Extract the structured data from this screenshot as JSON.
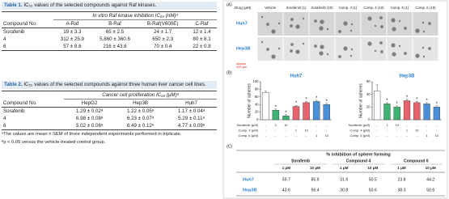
{
  "table1": {
    "label": "Table 1.",
    "caption": "IC₅₀ values of the selected compounds against Raf kinases.",
    "group_header": "In vitro Raf kinase inhibition IC₅₀ (nM)ᵃ",
    "columns": [
      "Compound No.",
      "A-Raf",
      "B-Raf",
      "B-Raf(V600E)",
      "C-Raf"
    ],
    "rows": [
      [
        "Sorafenib",
        "19 ± 3.3",
        "65 ± 2.5",
        "24 ± 1.7",
        "12 ± 1.4"
      ],
      [
        "4",
        "312 ± 25.9",
        "5,860 ± 360.6",
        "650 ± 2.3",
        "80 ± 8.1"
      ],
      [
        "6",
        "57 ± 8.6",
        "216 ± 43.6",
        "70 ± 0.4",
        "22 ± 0.8"
      ]
    ]
  },
  "table2": {
    "label": "Table 2.",
    "caption": "IC₅₀ values of the selected compounds against three human liver cancer cell lines.",
    "group_header": "Cancer cell proliferation IC₅₀ (μM)ᵃ",
    "columns": [
      "Compound No.",
      "HepG2",
      "Hep3B",
      "Huh7"
    ],
    "rows": [
      [
        "Sorafenib",
        "1.29 ± 0.02ᵃ",
        "1.22 ± 0.05ᵃ",
        "1.17 ± 0.04ᵃ"
      ],
      [
        "4",
        "6.98 ± 0.08ᵃ",
        "6.23 ± 0.07ᵃ",
        "5.29 ± 0.11ᵃ"
      ],
      [
        "6",
        "5.02 ± 0.06ᵃ",
        "6.49 ± 0.12ᵃ",
        "4.77 ± 0.09ᵃ"
      ]
    ],
    "footnotes": [
      "ᵃThe values are mean ± SEM of three independent experiments performed in triplicate.",
      "ᵇp < 0.05 versus the vehicle-treated control group."
    ]
  },
  "figure": {
    "panel_a": {
      "letter": "(A)",
      "header": "Drug (μM)",
      "conditions": [
        "Vehicle",
        "Sorafenib (1)",
        "Sorafenib (10)",
        "Comp. 4 (1)",
        "Comp. 4 (10)",
        "Comp. 6 (1)",
        "Comp. 6 (10)"
      ],
      "cell_lines": [
        "Huh7",
        "Hep3B"
      ],
      "scale_bar": "200 μm"
    },
    "panel_b": {
      "letter": "(B)"
    },
    "panel_c": {
      "letter": "(C)",
      "title": "% inhibition of sphere forming",
      "groups": [
        "Sorafenib",
        "Compound 4",
        "Compound 6"
      ],
      "doses": [
        "1 μM",
        "10 μM",
        "1 μM",
        "10 μM",
        "1 μM",
        "10 μM"
      ],
      "rows": [
        {
          "label": "Huh7",
          "values": [
            59.7,
            85.9,
            31.6,
            50.5,
            23.8,
            44.2
          ]
        },
        {
          "label": "Hep3B",
          "values": [
            43.6,
            56.4,
            30.8,
            50.6,
            38.3,
            50.6
          ]
        }
      ]
    }
  },
  "chart_data": [
    {
      "type": "bar",
      "title": "Huh7",
      "y_label": "Number of spheres",
      "values": [
        72,
        25,
        10,
        35,
        45,
        48,
        40
      ],
      "errors": [
        3,
        3,
        3,
        3,
        3,
        3,
        3
      ],
      "markers": [
        null,
        "*",
        "*",
        "*",
        "*",
        "*",
        "*"
      ],
      "colors": [
        "#ffffff",
        "#3cb371",
        "#3cb371",
        "#e8626e",
        "#e8626e",
        "#4a90d9",
        "#4a90d9"
      ],
      "ylim": [
        0,
        100
      ],
      "yticks": [
        0,
        20,
        40,
        60,
        80,
        100
      ],
      "treatments": [
        {
          "name": "Sorafenib (μM)",
          "labels": [
            "-",
            "1",
            "10",
            "-",
            "-",
            "-",
            "-"
          ]
        },
        {
          "name": "Comp. 4 (μM)",
          "labels": [
            "-",
            "-",
            "-",
            "1",
            "10",
            "-",
            "-"
          ]
        },
        {
          "name": "Comp. 6 (μM)",
          "labels": [
            "-",
            "-",
            "-",
            "-",
            "-",
            "1",
            "10"
          ]
        }
      ]
    },
    {
      "type": "bar",
      "title": "Hep3B",
      "y_label": "Number of spheres",
      "values": [
        45,
        25,
        20,
        30,
        27,
        25,
        20
      ],
      "errors": [
        10,
        2,
        2,
        2,
        2,
        2,
        2
      ],
      "markers": [
        null,
        "*",
        "*",
        "*",
        "*",
        "*",
        "*"
      ],
      "colors": [
        "#ffffff",
        "#3cb371",
        "#3cb371",
        "#e8626e",
        "#e8626e",
        "#4a90d9",
        "#4a90d9"
      ],
      "ylim": [
        0,
        60
      ],
      "yticks": [
        0,
        20,
        40,
        60
      ],
      "treatments": [
        {
          "name": "Sorafenib (μM)",
          "labels": [
            "-",
            "1",
            "10",
            "-",
            "-",
            "-",
            "-"
          ]
        },
        {
          "name": "Comp. 4 (μM)",
          "labels": [
            "-",
            "-",
            "-",
            "1",
            "10",
            "-",
            "-"
          ]
        },
        {
          "name": "Comp. 6 (μM)",
          "labels": [
            "-",
            "-",
            "-",
            "-",
            "-",
            "1",
            "10"
          ]
        }
      ]
    }
  ]
}
